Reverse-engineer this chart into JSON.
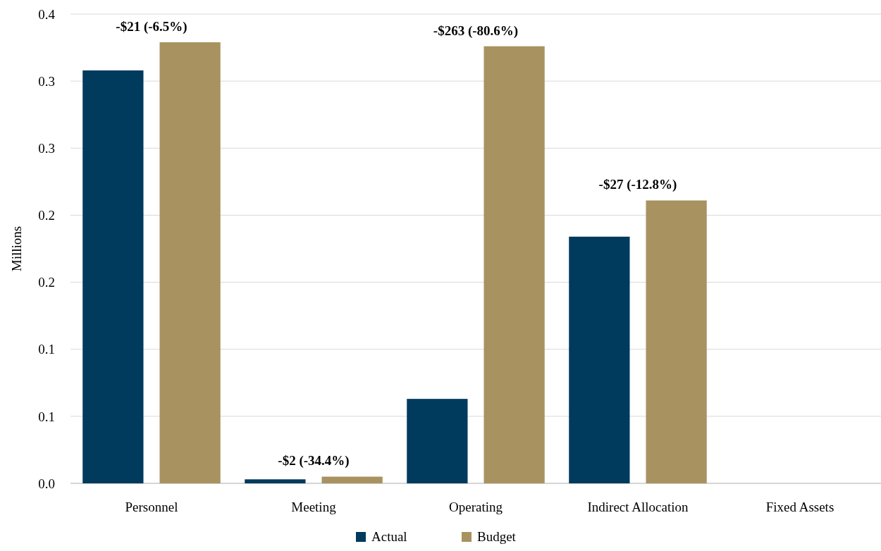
{
  "chart_data": {
    "type": "bar",
    "ylabel": "Millions",
    "categories": [
      "Personnel",
      "Meeting",
      "Operating",
      "Indirect Allocation",
      "Fixed Assets"
    ],
    "series": [
      {
        "name": "Actual",
        "color": "#003a5d",
        "values": [
          0.308,
          0.003,
          0.063,
          0.184,
          0
        ]
      },
      {
        "name": "Budget",
        "color": "#a89260",
        "values": [
          0.329,
          0.005,
          0.326,
          0.211,
          0
        ]
      }
    ],
    "ylim": [
      0,
      0.35
    ],
    "yticks": [
      {
        "value": 0,
        "label": "0.0"
      },
      {
        "value": 0.05,
        "label": "0.1"
      },
      {
        "value": 0.1,
        "label": "0.1"
      },
      {
        "value": 0.15,
        "label": "0.2"
      },
      {
        "value": 0.2,
        "label": "0.2"
      },
      {
        "value": 0.25,
        "label": "0.3"
      },
      {
        "value": 0.3,
        "label": "0.3"
      },
      {
        "value": 0.35,
        "label": "0.4"
      }
    ],
    "grid": "y",
    "legend": "bottom",
    "annotations": [
      "-$21 (-6.5%)",
      "-$2 (-34.4%)",
      "-$263 (-80.6%)",
      "-$27 (-12.8%)"
    ]
  }
}
